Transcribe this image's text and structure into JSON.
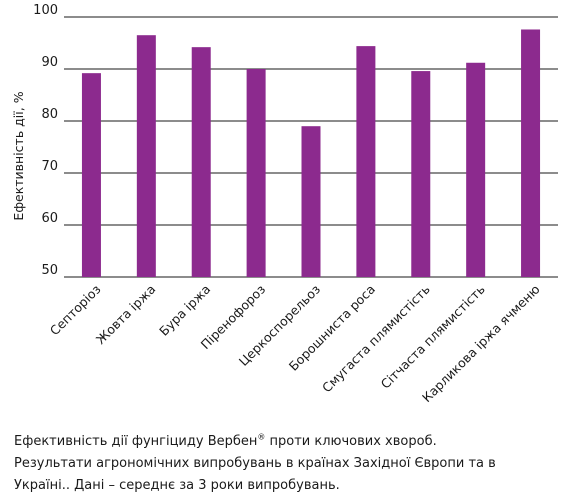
{
  "chart_data": {
    "type": "bar",
    "categories": [
      "Септоріоз",
      "Жовта іржа",
      "Бура іржа",
      "Піренофороз",
      "Церкоспорельоз",
      "Борошниста роса",
      "Смугаста плямистість",
      "Сітчаста плямистість",
      "Карликова іржа ячменю"
    ],
    "values": [
      89.2,
      96.5,
      94.2,
      90.0,
      79.0,
      94.4,
      89.6,
      91.2,
      97.6
    ],
    "ylabel": "Ефективність дії, %",
    "xlabel": "",
    "ylim": [
      50,
      100
    ],
    "yticks": [
      50,
      60,
      70,
      80,
      90,
      100
    ],
    "grid": true,
    "bar_color": "#8c2a8e",
    "grid_color": "#1a1a1a"
  },
  "caption": {
    "part1": "Ефективність дії фунгіциду Вербен",
    "mark": "®",
    "part2": " проти ключових хвороб.",
    "line2": "Результати агрономічних випробувань в країнах Західної Європи та в",
    "line3": "Україні.. Дані – середнє за 3 роки випробувань."
  }
}
